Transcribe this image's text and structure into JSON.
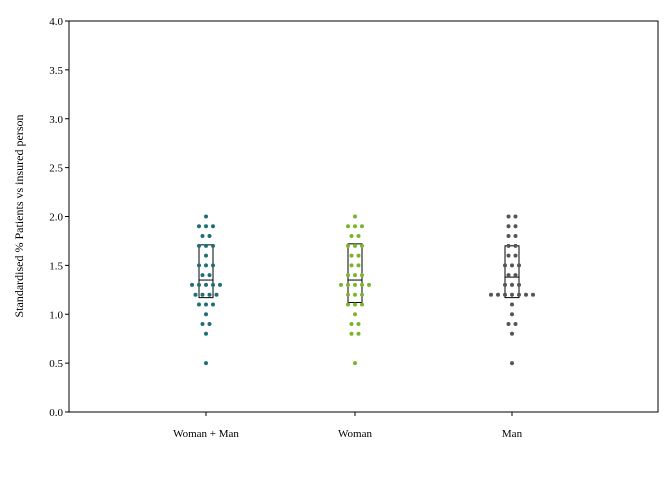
{
  "chart_data": {
    "type": "scatter",
    "subtype": "dot-strip-with-box",
    "title": "",
    "xlabel": "",
    "ylabel": "Standardised % Patients vs insured person",
    "ylim": [
      0,
      4
    ],
    "yticks": [
      "0.0",
      "0.5",
      "1.0",
      "1.5",
      "2.0",
      "2.5",
      "3.0",
      "3.5",
      "4.0"
    ],
    "grid": false,
    "legend": "none",
    "categories": [
      "Woman + Man",
      "Woman",
      "Man"
    ],
    "series": [
      {
        "category": "Woman + Man",
        "color": "#1f6f78",
        "box": {
          "q1": 1.17,
          "median": 1.35,
          "q3": 1.71
        },
        "points": [
          2.0,
          1.9,
          1.9,
          1.9,
          1.8,
          1.8,
          1.7,
          1.7,
          1.7,
          1.6,
          1.5,
          1.5,
          1.5,
          1.4,
          1.4,
          1.3,
          1.3,
          1.3,
          1.3,
          1.3,
          1.2,
          1.2,
          1.2,
          1.2,
          1.1,
          1.1,
          1.1,
          1.0,
          0.9,
          0.9,
          0.8,
          0.5
        ]
      },
      {
        "category": "Woman",
        "color": "#7ab52a",
        "box": {
          "q1": 1.12,
          "median": 1.35,
          "q3": 1.72
        },
        "points": [
          2.0,
          1.9,
          1.9,
          1.9,
          1.8,
          1.8,
          1.7,
          1.7,
          1.7,
          1.6,
          1.6,
          1.5,
          1.5,
          1.4,
          1.4,
          1.4,
          1.3,
          1.3,
          1.3,
          1.3,
          1.3,
          1.2,
          1.2,
          1.2,
          1.1,
          1.1,
          1.1,
          1.0,
          0.9,
          0.9,
          0.8,
          0.8,
          0.5
        ]
      },
      {
        "category": "Man",
        "color": "#555555",
        "box": {
          "q1": 1.17,
          "median": 1.38,
          "q3": 1.7
        },
        "points": [
          2.0,
          2.0,
          1.9,
          1.9,
          1.8,
          1.8,
          1.7,
          1.7,
          1.6,
          1.6,
          1.5,
          1.5,
          1.5,
          1.4,
          1.4,
          1.3,
          1.3,
          1.3,
          1.2,
          1.2,
          1.2,
          1.2,
          1.2,
          1.2,
          1.2,
          1.1,
          1.0,
          0.9,
          0.9,
          0.8,
          0.5
        ]
      }
    ]
  }
}
